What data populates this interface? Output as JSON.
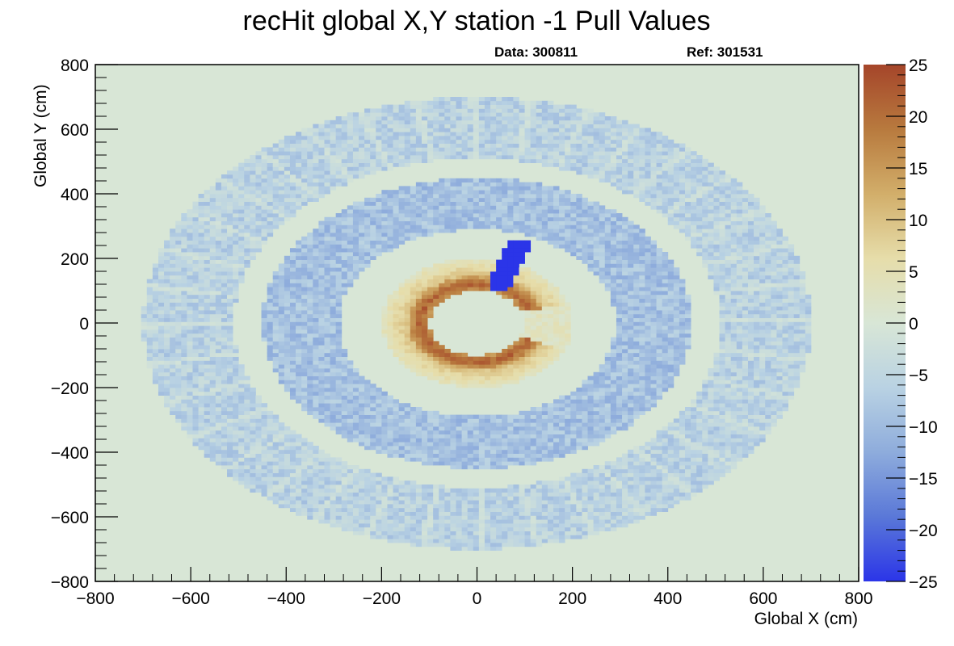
{
  "chart_data": {
    "type": "heatmap",
    "title": "recHit global X,Y station -1 Pull Values",
    "data_label": "Data: 300811",
    "ref_label": "Ref: 301531",
    "xlabel": "Global X (cm)",
    "ylabel": "Global Y (cm)",
    "xlim": [
      -800,
      800
    ],
    "ylim": [
      -800,
      800
    ],
    "zlim": [
      -25,
      25
    ],
    "x_ticks": [
      "−800",
      "−600",
      "−400",
      "−200",
      "0",
      "200",
      "400",
      "600",
      "800"
    ],
    "y_ticks": [
      "−800",
      "−600",
      "−400",
      "−200",
      "0",
      "200",
      "400",
      "600",
      "800"
    ],
    "z_ticks": [
      "−25",
      "−20",
      "−15",
      "−10",
      "−5",
      "0",
      "5",
      "10",
      "15",
      "20",
      "25"
    ],
    "grid": false,
    "colorscale": [
      "#2b35e8",
      "#5a78d8",
      "#8eacdc",
      "#b9d2e3",
      "#d8e6d6",
      "#e6ddaa",
      "#d2ae6a",
      "#b87a3e",
      "#a5452a"
    ],
    "background_value": 0,
    "regions": [
      {
        "name": "outer ring",
        "r_inner_cm": 510,
        "r_outer_cm": 700,
        "approx_pull": -6,
        "segmented": true
      },
      {
        "name": "middle ring",
        "r_inner_cm": 290,
        "r_outer_cm": 450,
        "approx_pull": -9
      },
      {
        "name": "inner ring",
        "r_inner_cm": 100,
        "r_outer_cm": 200,
        "approx_pull": 10,
        "hot_ring_r_cm": 120,
        "hot_ring_pull": 22
      },
      {
        "name": "blue patch",
        "x_range_cm": [
          30,
          110
        ],
        "y_range_cm": [
          100,
          250
        ],
        "approx_pull": -25
      }
    ]
  }
}
